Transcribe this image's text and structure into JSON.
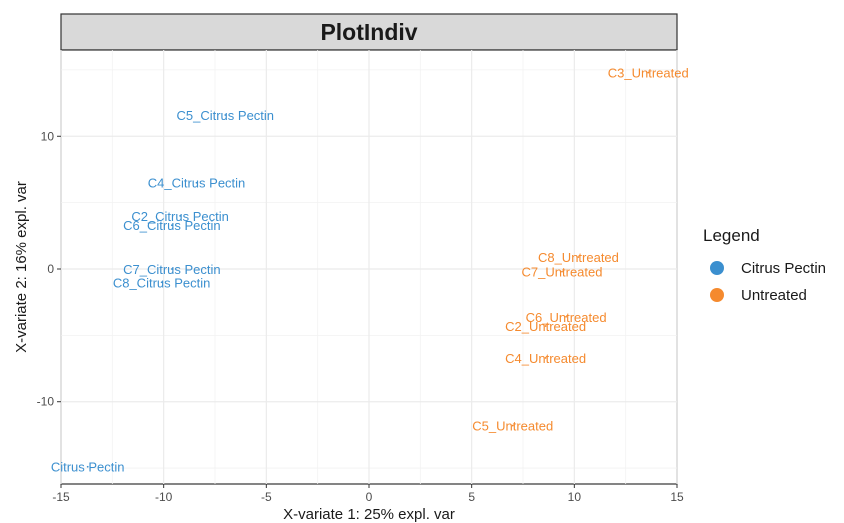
{
  "chart_data": {
    "type": "scatter",
    "title": "PlotIndiv",
    "xlabel": "X-variate 1: 25% expl. var",
    "ylabel": "X-variate 2: 16% expl. var",
    "xlim": [
      -15,
      15
    ],
    "ylim": [
      -16.2,
      16.5
    ],
    "xticks": [
      -15,
      -10,
      -5,
      0,
      5,
      10,
      15
    ],
    "yticks": [
      -10,
      0,
      10
    ],
    "grid": true,
    "legend": {
      "title": "Legend",
      "position": "right",
      "items": [
        {
          "name": "Citrus Pectin",
          "color": "#3b8fcf"
        },
        {
          "name": "Untreated",
          "color": "#f58a2e"
        }
      ]
    },
    "series": [
      {
        "name": "Citrus Pectin",
        "color": "#3b8fcf",
        "points": [
          {
            "label": "C5_Citrus Pectin",
            "x": -7.0,
            "y": 11.6
          },
          {
            "label": "C4_Citrus Pectin",
            "x": -8.4,
            "y": 6.5
          },
          {
            "label": "C2_Citrus Pectin",
            "x": -9.2,
            "y": 4.0
          },
          {
            "label": "C6_Citrus Pectin",
            "x": -9.6,
            "y": 3.3
          },
          {
            "label": "C7_Citrus Pectin",
            "x": -9.6,
            "y": 0.0
          },
          {
            "label": "C8_Citrus Pectin",
            "x": -10.1,
            "y": -1.0
          },
          {
            "label": "Citrus Pectin",
            "x": -13.7,
            "y": -14.9
          }
        ]
      },
      {
        "name": "Untreated",
        "color": "#f58a2e",
        "points": [
          {
            "label": "C3_Untreated",
            "x": 13.6,
            "y": 14.8
          },
          {
            "label": "C8_Untreated",
            "x": 10.2,
            "y": 0.9
          },
          {
            "label": "C7_Untreated",
            "x": 9.4,
            "y": -0.2
          },
          {
            "label": "C6_Untreated",
            "x": 9.6,
            "y": -3.6
          },
          {
            "label": "C2_Untreated",
            "x": 8.6,
            "y": -4.3
          },
          {
            "label": "C4_Untreated",
            "x": 8.6,
            "y": -6.7
          },
          {
            "label": "C5_Untreated",
            "x": 7.0,
            "y": -11.8
          }
        ]
      }
    ]
  }
}
